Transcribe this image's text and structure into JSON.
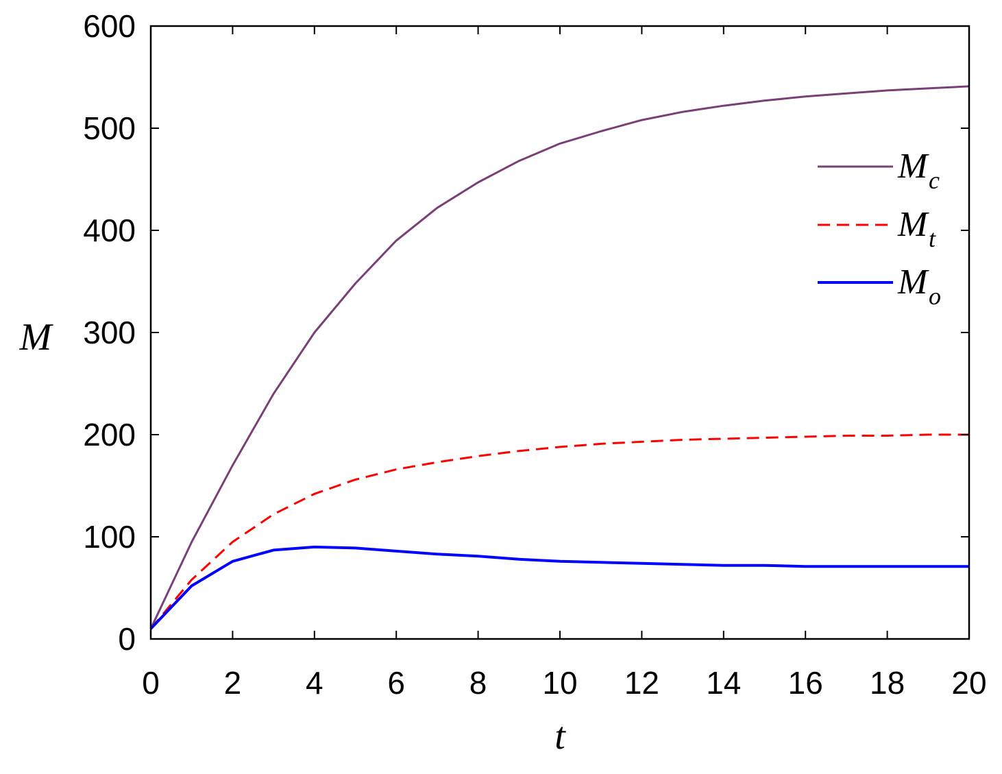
{
  "chart_data": {
    "type": "line",
    "xlabel": "t",
    "ylabel": "M",
    "xlim": [
      0,
      20
    ],
    "ylim": [
      0,
      600
    ],
    "xticks": [
      0,
      2,
      4,
      6,
      8,
      10,
      12,
      14,
      16,
      18,
      20
    ],
    "yticks": [
      0,
      100,
      200,
      300,
      400,
      500,
      600
    ],
    "grid": false,
    "legend_position": "top-right",
    "x": [
      0,
      1,
      2,
      3,
      4,
      5,
      6,
      7,
      8,
      9,
      10,
      11,
      12,
      13,
      14,
      15,
      16,
      17,
      18,
      19,
      20
    ],
    "series": [
      {
        "name": "M",
        "name_sub": "c",
        "color": "#7b3f78",
        "style": "solid",
        "values": [
          10,
          95,
          170,
          240,
          300,
          348,
          390,
          422,
          447,
          468,
          485,
          497,
          508,
          516,
          522,
          527,
          531,
          534,
          537,
          539,
          541
        ]
      },
      {
        "name": "M",
        "name_sub": "t",
        "color": "#ff0000",
        "style": "dashed",
        "values": [
          10,
          58,
          95,
          122,
          142,
          156,
          166,
          173,
          179,
          184,
          188,
          191,
          193,
          195,
          196,
          197,
          198,
          199,
          199,
          200,
          200
        ]
      },
      {
        "name": "M",
        "name_sub": "o",
        "color": "#0000ff",
        "style": "solid",
        "values": [
          10,
          52,
          76,
          87,
          90,
          89,
          86,
          83,
          81,
          78,
          76,
          75,
          74,
          73,
          72,
          72,
          71,
          71,
          71,
          71,
          71
        ]
      }
    ]
  }
}
